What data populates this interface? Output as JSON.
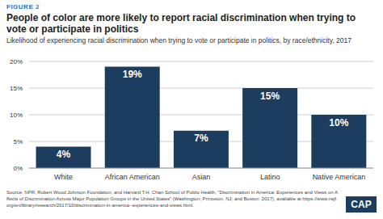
{
  "chart_data": {
    "type": "bar",
    "title": "People of color are more likely to report racial discrimination when trying to vote or participate in politics",
    "subtitle": "Likelihood of experiencing racial discrimination when trying to vote or participate in politics, by race/ethnicity, 2017",
    "categories": [
      "White",
      "African American",
      "Asian",
      "Latino",
      "Native American"
    ],
    "values": [
      4,
      19,
      7,
      15,
      10
    ],
    "value_labels": [
      "4%",
      "19%",
      "7%",
      "15%",
      "10%"
    ],
    "color": "#1c3d5e",
    "ylim": [
      0,
      20
    ],
    "yticks": [
      {
        "value": 0,
        "label": "0%"
      },
      {
        "value": 5,
        "label": "5%"
      },
      {
        "value": 10,
        "label": "10%"
      },
      {
        "value": 15,
        "label": "15%"
      },
      {
        "value": 20,
        "label": "20%"
      }
    ],
    "grid": true,
    "data_labels": true,
    "annotations": [
      "FIGURE 2",
      "Source: NPR, Robert Wood Johnson Foundation, and Harvard T.H. Chan School of Public Health, \"Discrimination in America: Experiences and Views on Affects of Discrimination Across Major Population Groups in the United States\" (Washington; Princeton, NJ; and Boston: 2017), available at https://www.rwjf.org/en/library/research/2017/10/discrimination-in-america--experiences-and-views.html.",
      "CAP"
    ]
  }
}
